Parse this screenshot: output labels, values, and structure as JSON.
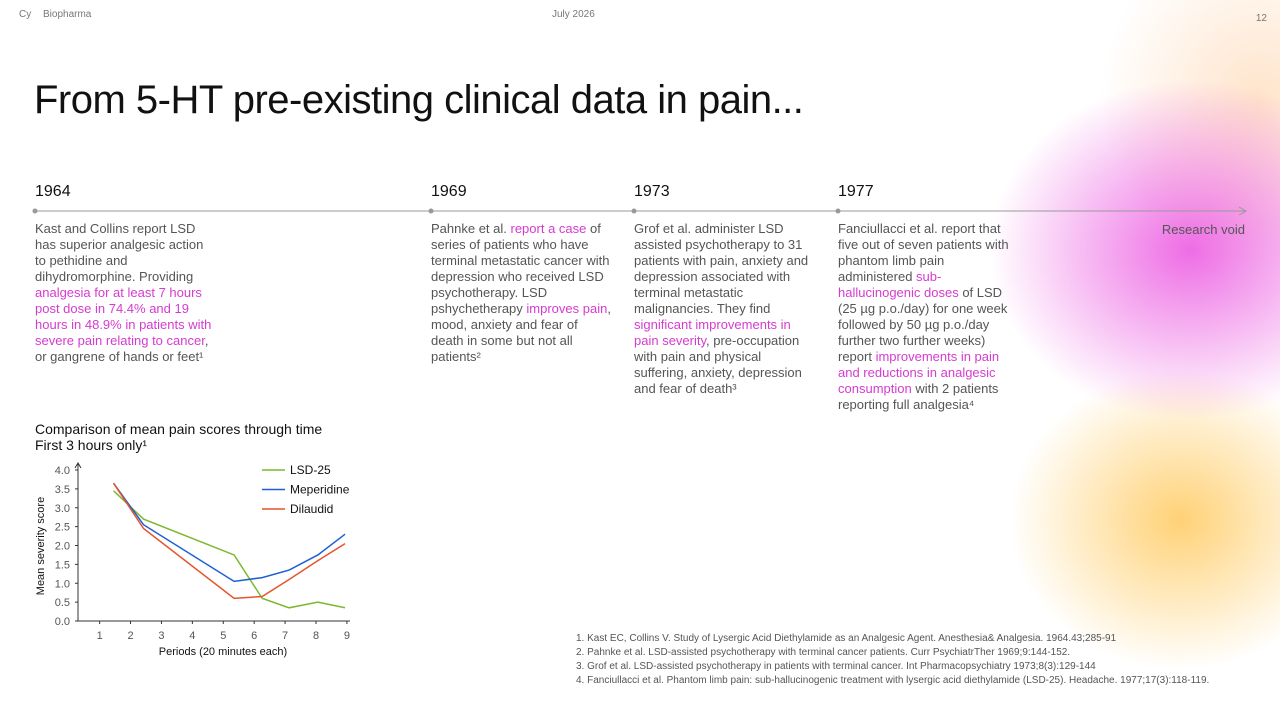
{
  "header": {
    "logo": "Cy",
    "company": "Biopharma",
    "date": "July 2026",
    "page": "12"
  },
  "title": "From 5-HT pre-existing clinical data in pain...",
  "highlight_color": "#d63bd0",
  "timeline": [
    {
      "year": "1964",
      "segments": [
        {
          "text": "Kast and Collins report LSD has superior analgesic action to pethidine and dihydromorphine. Providing ",
          "highlight": false
        },
        {
          "text": "analgesia for at least 7 hours post dose in 74.4% and 19 hours in 48.9% in patients with severe pain relating to cancer",
          "highlight": true
        },
        {
          "text": ", or gangrene of hands or feet¹",
          "highlight": false
        }
      ]
    },
    {
      "year": "1969",
      "segments": [
        {
          "text": "Pahnke et al. ",
          "highlight": false
        },
        {
          "text": "report a case",
          "highlight": true
        },
        {
          "text": " of series of patients who have terminal metastatic cancer with depression who received LSD psychotherapy. LSD pshychetherapy ",
          "highlight": false
        },
        {
          "text": "improves pain",
          "highlight": true
        },
        {
          "text": ", mood, anxiety and fear of death in some but not all patients²",
          "highlight": false
        }
      ]
    },
    {
      "year": "1973",
      "segments": [
        {
          "text": "Grof et al. administer LSD assisted psychotherapy to 31 patients with pain, anxiety and depression associated with terminal metastatic malignancies. They find ",
          "highlight": false
        },
        {
          "text": "significant improvements in pain severity",
          "highlight": true
        },
        {
          "text": ", pre-occupation with pain and physical suffering, anxiety, depression and fear of death³",
          "highlight": false
        }
      ]
    },
    {
      "year": "1977",
      "segments": [
        {
          "text": "Fanciullacci et al. report that five out of seven patients with phantom limb pain administered ",
          "highlight": false
        },
        {
          "text": "sub-hallucinogenic doses",
          "highlight": true
        },
        {
          "text": " of LSD (25 µg p.o./day) for one week followed by 50 µg p.o./day further two further weeks) report ",
          "highlight": false
        },
        {
          "text": "improvements in pain and reductions in analgesic consumption",
          "highlight": true
        },
        {
          "text": " with 2 patients reporting full analgesia⁴",
          "highlight": false
        }
      ]
    }
  ],
  "timeline_end": "Research void",
  "chart_data": {
    "type": "line",
    "title": "Comparison of mean pain scores through time",
    "subtitle": "First 3 hours only¹",
    "x_label": "Periods (20 minutes each)",
    "y_label": "Mean severity score",
    "x": [
      1.45,
      2.42,
      5.35,
      6.26,
      7.13,
      8.06,
      8.94
    ],
    "series": [
      {
        "name": "LSD-25",
        "color": "#7cb82f",
        "values": [
          3.45,
          2.7,
          1.75,
          0.6,
          0.35,
          0.5,
          0.35
        ]
      },
      {
        "name": "Meperidine",
        "color": "#1f5fd6",
        "values": [
          3.65,
          2.55,
          1.05,
          1.15,
          1.35,
          1.75,
          2.3
        ]
      },
      {
        "name": "Dilaudid",
        "color": "#e4552b",
        "values": [
          3.65,
          2.45,
          0.6,
          0.65,
          1.1,
          1.6,
          2.05
        ]
      }
    ],
    "xlim": [
      0.3,
      9.1
    ],
    "xticks": [
      1,
      2,
      3,
      4,
      5,
      6,
      7,
      8,
      9
    ],
    "ylim": [
      0,
      4
    ],
    "yticks": [
      {
        "value": 0,
        "label": "0.0"
      },
      {
        "value": 0.5,
        "label": "0.5"
      },
      {
        "value": 1,
        "label": "1.0"
      },
      {
        "value": 1.5,
        "label": "1.5"
      },
      {
        "value": 2,
        "label": "2.0"
      },
      {
        "value": 2.5,
        "label": "2.5"
      },
      {
        "value": 3,
        "label": "3.0"
      },
      {
        "value": 3.5,
        "label": "3.5"
      },
      {
        "value": 4,
        "label": "4.0"
      }
    ],
    "grid": false,
    "legend": "top-right"
  },
  "references": [
    "1. Kast EC, Collins V. Study of Lysergic Acid Diethylamide as an Analgesic Agent. Anesthesia& Analgesia. 1964.43;285-91",
    "2. Pahnke et al. LSD-assisted psychotherapy with terminal cancer patients. Curr PsychiatrTher 1969;9:144-152.",
    "3. Grof et al. LSD-assisted psychotherapy in patients with terminal cancer. Int Pharmacopsychiatry 1973;8(3):129-144",
    "4. Fanciullacci et al. Phantom limb pain: sub-hallucinogenic treatment with lysergic acid diethylamide (LSD-25). Headache. 1977;17(3):118-119."
  ]
}
